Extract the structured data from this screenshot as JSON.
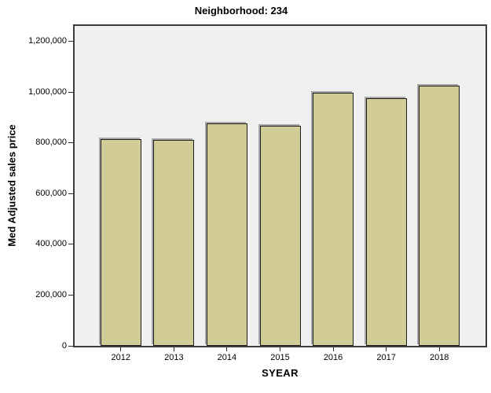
{
  "chart_data": {
    "type": "bar",
    "title": "Neighborhood: 234",
    "xlabel": "SYEAR",
    "ylabel": "Med Adjusted sales price",
    "categories": [
      "2012",
      "2013",
      "2014",
      "2015",
      "2016",
      "2017",
      "2018"
    ],
    "values": [
      816000,
      812000,
      877000,
      869000,
      1000000,
      978000,
      1025000
    ],
    "yticks": [
      0,
      200000,
      400000,
      600000,
      800000,
      1000000,
      1200000
    ],
    "ytick_labels": [
      "0",
      "200,000",
      "400,000",
      "600,000",
      "800,000",
      "1,000,000",
      "1,200,000"
    ],
    "ylim": [
      0,
      1262000
    ],
    "grid": false,
    "legend": "none",
    "colors": {
      "bar_fill": "#d2cd96",
      "bar_border": "#1c1c1c",
      "bar_shadow": "#a9a9a9",
      "plot_background": "#f0f0f0",
      "frame_border": "#3d3d3d",
      "page_background": "#ffffff"
    }
  }
}
